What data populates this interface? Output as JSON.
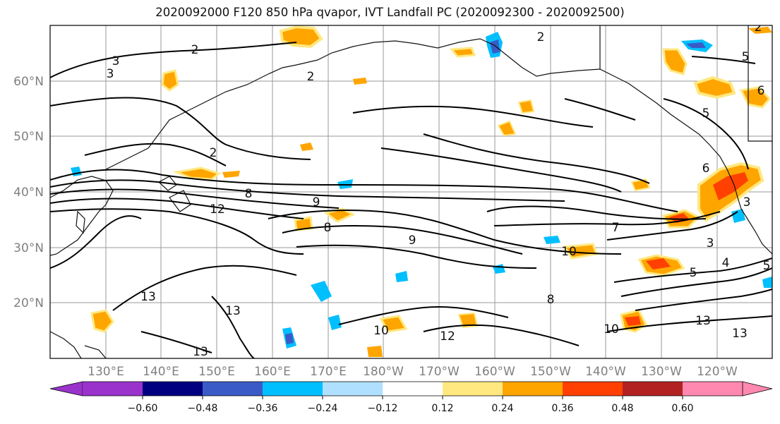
{
  "title": "2020092000 F120 850 hPa qvapor, IVT Landfall PC (2020092300 - 2020092500)",
  "lon_ticks": [
    "130°E",
    "140°E",
    "150°E",
    "160°E",
    "170°E",
    "180°W",
    "170°W",
    "160°W",
    "150°W",
    "140°W",
    "130°W",
    "120°W"
  ],
  "lat_ticks": [
    "60°N",
    "50°N",
    "40°N",
    "30°N",
    "20°N"
  ],
  "colorbar": {
    "colors": [
      "#9933cc",
      "#000080",
      "#3a5bc7",
      "#00bfff",
      "#b0e0ff",
      "#ffffff",
      "#ffe880",
      "#ffa500",
      "#ff4000",
      "#b22222",
      "#ff88b0"
    ],
    "labels": [
      "−0.60",
      "−0.48",
      "−0.36",
      "−0.24",
      "−0.12",
      "0.12",
      "0.24",
      "0.36",
      "0.48",
      "0.60"
    ]
  },
  "contour_labels": [
    "2",
    "2",
    "2",
    "3",
    "3",
    "2",
    "5",
    "6",
    "5",
    "8",
    "12",
    "8",
    "9",
    "7",
    "9",
    "10",
    "6",
    "3",
    "13",
    "13",
    "13",
    "10",
    "12",
    "10",
    "13",
    "13",
    "8",
    "2",
    "5",
    "4",
    "5",
    "3"
  ]
}
